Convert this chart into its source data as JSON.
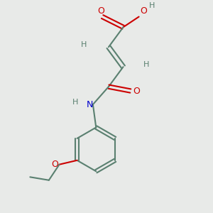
{
  "background_color": "#e8eae8",
  "bond_color": "#5a8070",
  "o_color": "#cc0000",
  "n_color": "#0000cc",
  "figsize": [
    3.0,
    3.0
  ],
  "dpi": 100,
  "bond_lw": 1.5,
  "font_size_atom": 9,
  "font_size_h": 8,
  "xlim": [
    0,
    10
  ],
  "ylim": [
    0,
    10
  ]
}
